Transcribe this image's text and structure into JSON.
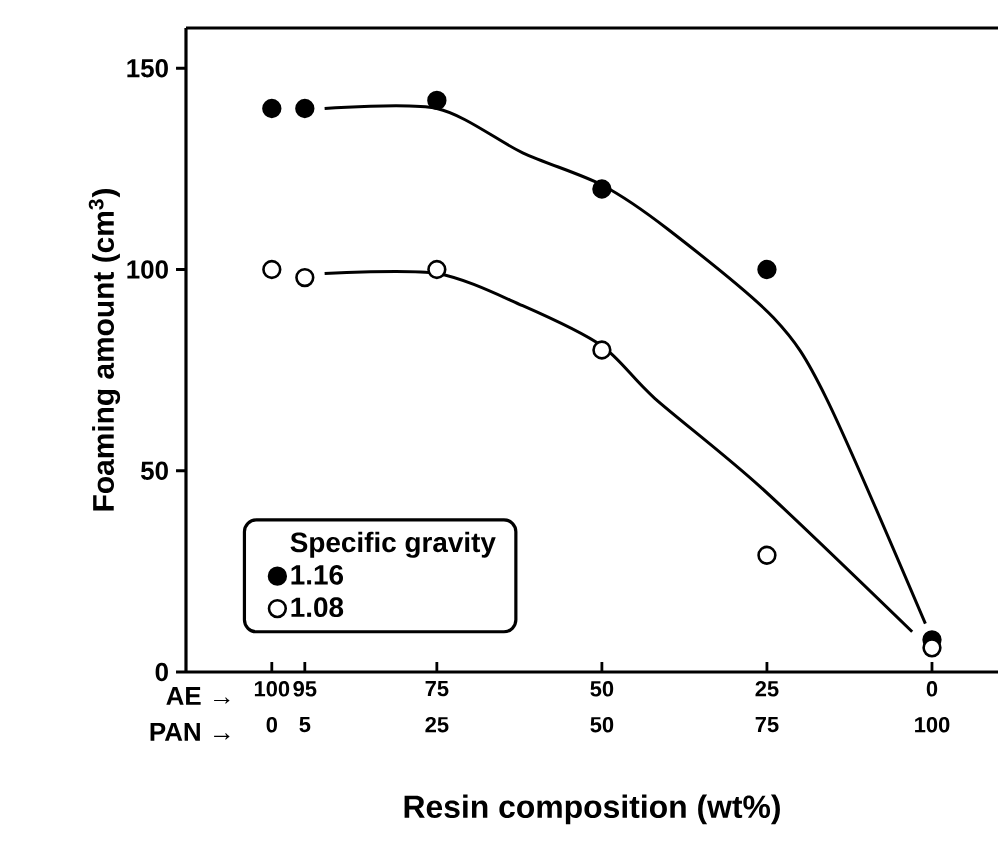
{
  "chart_data": {
    "type": "scatter",
    "xlabel": "Resin composition (wt%)",
    "ylabel": "Foaming amount (cm$^{3}$)",
    "legend_title": "Specific gravity",
    "xlim": [
      113,
      -10
    ],
    "ylim": [
      0,
      160
    ],
    "xticks": [
      100,
      95,
      75,
      50,
      25,
      0
    ],
    "x2lim": [
      -13,
      110
    ],
    "x2ticks": [
      0,
      5,
      25,
      50,
      75,
      100
    ],
    "yticks": [
      0,
      50,
      100,
      150
    ],
    "annotations": [
      "AE →",
      "PAN →"
    ],
    "legend": "bottom left",
    "marker": "circle",
    "grid": false,
    "series": [
      {
        "name": "1.16",
        "color": "#000000",
        "x": [
          100,
          95,
          75,
          50,
          25,
          0
        ],
        "values": [
          140,
          140,
          142,
          120,
          100,
          8
        ]
      },
      {
        "name": "1.08",
        "color": "#ffffff",
        "x": [
          100,
          95,
          75,
          50,
          25,
          0
        ],
        "values": [
          100,
          98,
          100,
          80,
          29,
          6
        ]
      },
      {
        "type": "line",
        "marker": "none",
        "color": "#000000",
        "x": [
          92,
          75,
          62,
          50,
          40,
          24,
          16,
          1
        ],
        "values": [
          140,
          140,
          129,
          121,
          110,
          88,
          68,
          12
        ]
      },
      {
        "type": "line",
        "marker": "none",
        "color": "#000000",
        "x": [
          92,
          75,
          62,
          50,
          42,
          26,
          3
        ],
        "values": [
          99,
          99,
          91,
          81,
          68,
          46,
          10
        ]
      }
    ]
  }
}
